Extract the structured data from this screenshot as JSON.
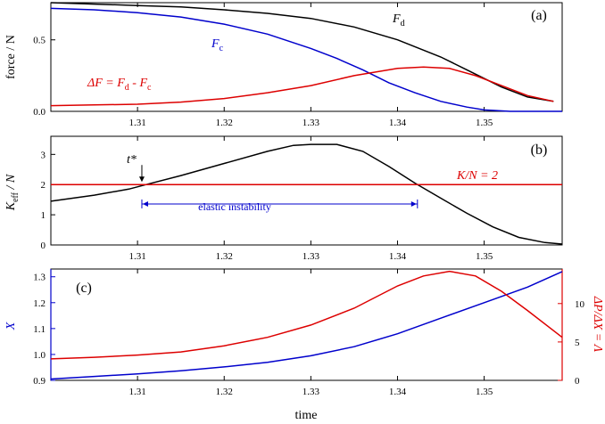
{
  "chart_data": [
    {
      "panel": "(a)",
      "type": "line",
      "ylabel": "force / N",
      "xlim": [
        1.3,
        1.359
      ],
      "ylim": [
        0.0,
        0.76
      ],
      "xticks": [
        "1.31",
        "1.32",
        "1.33",
        "1.34",
        "1.35"
      ],
      "yticks": [
        "0.0",
        "0.5"
      ],
      "series": [
        {
          "name": "F_d",
          "label_main": "F",
          "label_sub": "d",
          "color": "#000000",
          "x": [
            1.3,
            1.305,
            1.31,
            1.315,
            1.32,
            1.325,
            1.33,
            1.335,
            1.34,
            1.345,
            1.348,
            1.35,
            1.352,
            1.355,
            1.358
          ],
          "y": [
            0.76,
            0.75,
            0.74,
            0.73,
            0.71,
            0.685,
            0.65,
            0.59,
            0.5,
            0.38,
            0.29,
            0.23,
            0.17,
            0.1,
            0.07
          ]
        },
        {
          "name": "F_c",
          "label_main": "F",
          "label_sub": "c",
          "color": "#0000cc",
          "x": [
            1.3,
            1.305,
            1.31,
            1.315,
            1.32,
            1.325,
            1.33,
            1.333,
            1.336,
            1.339,
            1.342,
            1.345,
            1.348,
            1.35,
            1.353,
            1.356,
            1.359
          ],
          "y": [
            0.72,
            0.71,
            0.69,
            0.66,
            0.61,
            0.54,
            0.44,
            0.37,
            0.29,
            0.2,
            0.13,
            0.07,
            0.03,
            0.01,
            0.0,
            0.0,
            0.0
          ]
        },
        {
          "name": "ΔF = F_d - F_c",
          "label_parts": [
            "ΔF = F",
            "d",
            " - F",
            "c"
          ],
          "color": "#dd0000",
          "x": [
            1.3,
            1.305,
            1.31,
            1.315,
            1.32,
            1.325,
            1.33,
            1.335,
            1.34,
            1.343,
            1.346,
            1.349,
            1.352,
            1.355,
            1.358
          ],
          "y": [
            0.04,
            0.045,
            0.05,
            0.065,
            0.09,
            0.13,
            0.18,
            0.25,
            0.3,
            0.31,
            0.3,
            0.25,
            0.18,
            0.11,
            0.07
          ]
        }
      ]
    },
    {
      "panel": "(b)",
      "type": "line",
      "ylabel_main": "K",
      "ylabel_sub": "eff",
      "ylabel_tail": " / N",
      "xlim": [
        1.3,
        1.359
      ],
      "ylim": [
        0.0,
        3.6
      ],
      "xticks": [
        "1.31",
        "1.32",
        "1.33",
        "1.34",
        "1.35"
      ],
      "yticks": [
        "0",
        "1",
        "2",
        "3"
      ],
      "series": [
        {
          "name": "K_eff / N",
          "color": "#000000",
          "x": [
            1.3,
            1.305,
            1.309,
            1.311,
            1.315,
            1.32,
            1.325,
            1.328,
            1.33,
            1.333,
            1.336,
            1.339,
            1.342,
            1.345,
            1.348,
            1.351,
            1.354,
            1.357,
            1.359
          ],
          "y": [
            1.45,
            1.65,
            1.85,
            2.0,
            2.3,
            2.7,
            3.1,
            3.3,
            3.33,
            3.33,
            3.1,
            2.6,
            2.05,
            1.55,
            1.05,
            0.6,
            0.25,
            0.08,
            0.03
          ]
        },
        {
          "name": "K/N = 2",
          "color": "#dd0000",
          "x": [
            1.3,
            1.359
          ],
          "y": [
            2.0,
            2.0
          ]
        }
      ],
      "annotations": {
        "tstar": "t*",
        "tstar_x": 1.3105,
        "kn_label": "K/N = 2",
        "instability_label": "elastic instability",
        "instability_range": [
          1.3105,
          1.3423
        ],
        "instability_y": 1.3
      }
    },
    {
      "panel": "(c)",
      "type": "line",
      "ylabel_left": "X",
      "ylabel_right": "ΔP/ΔX = Λ",
      "xlabel": "time",
      "xlim": [
        1.3,
        1.359
      ],
      "ylim_left": [
        0.9,
        1.33
      ],
      "ylim_right": [
        0.0,
        14.5
      ],
      "xticks": [
        "1.31",
        "1.32",
        "1.33",
        "1.34",
        "1.35"
      ],
      "yticks_left": [
        "0.9",
        "1.0",
        "1.1",
        "1.2",
        "1.3"
      ],
      "yticks_right": [
        "0",
        "5",
        "10"
      ],
      "series": [
        {
          "name": "X",
          "axis": "left",
          "color": "#0000cc",
          "x": [
            1.3,
            1.305,
            1.31,
            1.315,
            1.32,
            1.325,
            1.33,
            1.335,
            1.34,
            1.345,
            1.35,
            1.355,
            1.359
          ],
          "y": [
            0.905,
            0.915,
            0.925,
            0.937,
            0.952,
            0.97,
            0.995,
            1.03,
            1.08,
            1.14,
            1.2,
            1.26,
            1.32
          ]
        },
        {
          "name": "Λ",
          "axis": "right",
          "color": "#dd0000",
          "x": [
            1.3,
            1.305,
            1.31,
            1.315,
            1.32,
            1.325,
            1.33,
            1.335,
            1.34,
            1.343,
            1.346,
            1.349,
            1.352,
            1.355,
            1.359
          ],
          "y": [
            2.8,
            3.0,
            3.3,
            3.7,
            4.5,
            5.6,
            7.2,
            9.4,
            12.3,
            13.6,
            14.2,
            13.6,
            11.6,
            9.1,
            5.6
          ]
        }
      ]
    }
  ],
  "colors": {
    "black": "#000000",
    "blue": "#0000cc",
    "red": "#dd0000"
  }
}
